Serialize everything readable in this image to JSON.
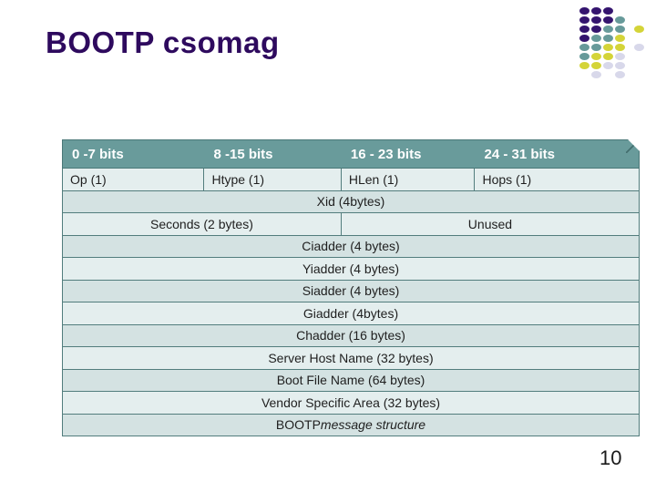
{
  "slide": {
    "title": "BOOTP csomag",
    "page_number": "10",
    "title_color": "#2e0a5e"
  },
  "decoration": {
    "palette": {
      "purple": "#34146e",
      "teal": "#679a9a",
      "yellow": "#d4d438",
      "lavender": "#d8d8ea"
    },
    "grid": [
      [
        "purple",
        "purple",
        "purple",
        null,
        null
      ],
      [
        "purple",
        "purple",
        "purple",
        "teal",
        null
      ],
      [
        "purple",
        "purple",
        "teal",
        "teal",
        "yellow"
      ],
      [
        "purple",
        "teal",
        "teal",
        "yellow",
        null
      ],
      [
        "teal",
        "teal",
        "yellow",
        "yellow",
        "lavender"
      ],
      [
        "teal",
        "yellow",
        "yellow",
        "lavender",
        null
      ],
      [
        "yellow",
        "yellow",
        "lavender",
        "lavender",
        null
      ],
      [
        null,
        "lavender",
        null,
        "lavender",
        null
      ]
    ]
  },
  "table": {
    "colors": {
      "header_bg": "#699b9b",
      "row_light": "#e4eeee",
      "row_dark": "#d4e2e2",
      "border": "#527d7d"
    },
    "header": {
      "cells": [
        "0 -7 bits",
        "8 -15 bits",
        "16 - 23 bits",
        "24 - 31 bits"
      ]
    },
    "rows": [
      {
        "type": "cells4",
        "cells": [
          "Op (1)",
          "Htype (1)",
          "HLen (1)",
          "Hops (1)"
        ]
      },
      {
        "type": "full",
        "label": "Xid (4bytes)"
      },
      {
        "type": "split",
        "cells": [
          "Seconds (2 bytes)",
          "Unused"
        ]
      },
      {
        "type": "full",
        "label": "Ciadder (4 bytes)"
      },
      {
        "type": "full",
        "label": "Yiadder (4 bytes)"
      },
      {
        "type": "full",
        "label": "Siadder (4 bytes)"
      },
      {
        "type": "full",
        "label": "Giadder (4bytes)"
      },
      {
        "type": "full",
        "label": "Chadder (16 bytes)"
      },
      {
        "type": "full",
        "label": "Server Host Name (32 bytes)"
      },
      {
        "type": "full",
        "label": "Boot File Name (64 bytes)"
      },
      {
        "type": "full",
        "label": "Vendor Specific Area (32 bytes)"
      },
      {
        "type": "caption",
        "prefix": "BOOTP ",
        "italic": "message structure"
      }
    ]
  }
}
